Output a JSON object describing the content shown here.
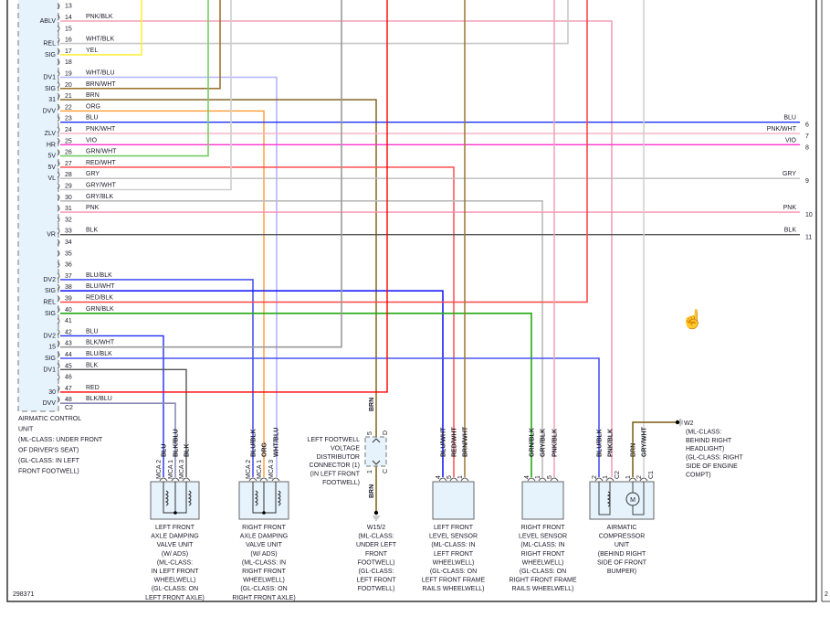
{
  "module": {
    "caption": [
      "AIRMATIC CONTROL",
      "UNIT",
      "(ML-CLASS: UNDER FRONT",
      "OF DRIVER'S SEAT)",
      "(GL-CLASS: IN LEFT",
      "FRONT FOOTWELL)"
    ],
    "connector": "C2",
    "pins": [
      {
        "pin": "13",
        "func": "",
        "wire": ""
      },
      {
        "pin": "14",
        "func": "ABLV",
        "wire": "PNK/BLK"
      },
      {
        "pin": "15",
        "func": "",
        "wire": ""
      },
      {
        "pin": "16",
        "func": "REL",
        "wire": "WHT/BLK"
      },
      {
        "pin": "17",
        "func": "SIG",
        "wire": "YEL"
      },
      {
        "pin": "18",
        "func": "",
        "wire": ""
      },
      {
        "pin": "19",
        "func": "DV1",
        "wire": "WHT/BLU"
      },
      {
        "pin": "20",
        "func": "SIG",
        "wire": "BRN/WHT"
      },
      {
        "pin": "21",
        "func": "31",
        "wire": "BRN"
      },
      {
        "pin": "22",
        "func": "DVV",
        "wire": "ORG"
      },
      {
        "pin": "23",
        "func": "",
        "wire": "BLU"
      },
      {
        "pin": "24",
        "func": "ZLV",
        "wire": "PNK/WHT"
      },
      {
        "pin": "25",
        "func": "HR",
        "wire": "VIO"
      },
      {
        "pin": "26",
        "func": "5V",
        "wire": "GRN/WHT"
      },
      {
        "pin": "27",
        "func": "5V",
        "wire": "RED/WHT"
      },
      {
        "pin": "28",
        "func": "VL",
        "wire": "GRY"
      },
      {
        "pin": "29",
        "func": "",
        "wire": "GRY/WHT"
      },
      {
        "pin": "30",
        "func": "",
        "wire": "GRY/BLK"
      },
      {
        "pin": "31",
        "func": "",
        "wire": "PNK"
      },
      {
        "pin": "32",
        "func": "",
        "wire": ""
      },
      {
        "pin": "33",
        "func": "VR",
        "wire": "BLK"
      },
      {
        "pin": "34",
        "func": "",
        "wire": ""
      },
      {
        "pin": "35",
        "func": "",
        "wire": ""
      },
      {
        "pin": "36",
        "func": "",
        "wire": ""
      },
      {
        "pin": "37",
        "func": "DV2",
        "wire": "BLU/BLK"
      },
      {
        "pin": "38",
        "func": "SIG",
        "wire": "BLU/WHT"
      },
      {
        "pin": "39",
        "func": "REL",
        "wire": "RED/BLK"
      },
      {
        "pin": "40",
        "func": "SIG",
        "wire": "GRN/BLK"
      },
      {
        "pin": "41",
        "func": "",
        "wire": ""
      },
      {
        "pin": "42",
        "func": "DV2",
        "wire": "BLU"
      },
      {
        "pin": "43",
        "func": "15",
        "wire": "BLK/WHT"
      },
      {
        "pin": "44",
        "func": "SIG",
        "wire": "BLU/BLK"
      },
      {
        "pin": "45",
        "func": "DV1",
        "wire": "BLK"
      },
      {
        "pin": "46",
        "func": "",
        "wire": ""
      },
      {
        "pin": "47",
        "func": "30",
        "wire": "RED"
      },
      {
        "pin": "48",
        "func": "DVV",
        "wire": "BLK/BLU"
      }
    ]
  },
  "wire_colors": {
    "PNK/BLK": "#f2a2b6",
    "WHT/BLK": "#c8c8c8",
    "YEL": "#ffee22",
    "WHT/BLU": "#b4b4ff",
    "BRN/WHT": "#9c7630",
    "BRN": "#7a5a10",
    "ORG": "#ff9a33",
    "BLU": "#1f2ef0",
    "PNK/WHT": "#f7b5c6",
    "VIO": "#ff33cc",
    "GRN/WHT": "#77cc66",
    "RED/WHT": "#ff5a5a",
    "GRY": "#bdbdbd",
    "GRY/WHT": "#cfcfcf",
    "GRY/BLK": "#bbbbbb",
    "PNK": "#ff8fb0",
    "BLK": "#555555",
    "BLU/BLK": "#4a55ee",
    "BLU/WHT": "#1c1cff",
    "RED/BLK": "#ff4848",
    "GRN/BLK": "#22aa11",
    "BLK/WHT": "#9a9a9a",
    "RED": "#ff0000",
    "BLK/BLU": "#8a8ab8"
  },
  "right_exits": [
    {
      "wire": "BLU",
      "num": "6"
    },
    {
      "wire": "PNK/WHT",
      "num": "7"
    },
    {
      "wire": "VIO",
      "num": "8"
    },
    {
      "wire": "GRY",
      "num": "9"
    },
    {
      "wire": "PNK",
      "num": "10"
    },
    {
      "wire": "BLK",
      "num": "11"
    }
  ],
  "components": [
    {
      "id": "left-front-axle-damping-valve",
      "pins": [
        {
          "wire": "BLU",
          "pin": "MCA 2"
        },
        {
          "wire": "BLK/BLU",
          "pin": "MCA 1"
        },
        {
          "wire": "BLK",
          "pin": "MCA 3"
        }
      ],
      "caption": [
        "LEFT FRONT",
        "AXLE DAMPING",
        "VALVE UNIT",
        "(W/ ADS)",
        "(ML-CLASS:",
        "IN LEFT FRONT",
        "WHEELWELL)",
        "(GL-CLASS: ON",
        "LEFT FRONT AXLE)"
      ]
    },
    {
      "id": "right-front-axle-damping-valve",
      "pins": [
        {
          "wire": "BLU/BLK",
          "pin": "MCA 2"
        },
        {
          "wire": "ORG",
          "pin": "MCA 1"
        },
        {
          "wire": "WHT/BLU",
          "pin": "MCA 3"
        }
      ],
      "caption": [
        "RIGHT FRONT",
        "AXLE DAMPING",
        "VALVE UNIT",
        "(W/ ADS)",
        "(ML-CLASS: IN",
        "RIGHT FRONT",
        "WHEELWELL)",
        "(GL-CLASS: ON",
        "RIGHT FRONT AXLE)"
      ]
    },
    {
      "id": "left-front-level-sensor",
      "pins": [
        {
          "wire": "BLU/WHT",
          "pin": "4"
        },
        {
          "wire": "RED/WHT",
          "pin": "5"
        },
        {
          "wire": "BRN/WHT",
          "pin": "1"
        }
      ],
      "caption": [
        "LEFT FRONT",
        "LEVEL SENSOR",
        "(ML-CLASS: IN",
        "LEFT FRONT",
        "WHEELWELL)",
        "(GL-CLASS: ON",
        "LEFT FRONT FRAME",
        "RAILS WHEELWELL)"
      ]
    },
    {
      "id": "right-front-level-sensor",
      "pins": [
        {
          "wire": "GRN/BLK",
          "pin": "4"
        },
        {
          "wire": "GRY/BLK",
          "pin": "1"
        },
        {
          "wire": "PNK/BLK",
          "pin": "5"
        }
      ],
      "caption": [
        "RIGHT FRONT",
        "LEVEL SENSOR",
        "(ML-CLASS: IN",
        "RIGHT FRONT",
        "WHEELWELL)",
        "(GL-CLASS: ON",
        "RIGHT FRONT FRAME",
        "RAILS WHEELWELL)"
      ]
    },
    {
      "id": "airmatic-compressor-unit",
      "pins": [
        {
          "wire": "BLU/BLK",
          "pin": "2"
        },
        {
          "wire": "PNK/BLK",
          "pin": "1"
        },
        {
          "wire": "BRN",
          "pin": "1"
        },
        {
          "wire": "GRY/WHT",
          "pin": "2"
        }
      ],
      "connectors": [
        "C2",
        "C1"
      ],
      "motor": "M",
      "caption": [
        "AIRMATIC",
        "COMPRESSOR",
        "UNIT",
        "(BEHIND RIGHT",
        "SIDE OF FRONT",
        "BUMPER)"
      ]
    }
  ],
  "footwell_connector": {
    "wire": "BRN",
    "pin_top": "5",
    "pin_bottom": "1",
    "conn_top": "D",
    "conn_bottom": "C",
    "caption": [
      "LEFT FOOTWELL",
      "VOLTAGE",
      "DISTRIBUTOR",
      "CONNECTOR (1)",
      "(IN LEFT FRONT",
      "FOOTWELL)"
    ]
  },
  "grounds": [
    {
      "id": "W15/2",
      "caption": [
        "W15/2",
        "(ML-CLASS:",
        "UNDER LEFT",
        "FRONT",
        "FOOTWELL)",
        "(GL-CLASS:",
        "LEFT FRONT",
        "FOOTWELL)"
      ]
    },
    {
      "id": "W2",
      "caption": [
        "W2",
        "(ML-CLASS:",
        "BEHIND RIGHT",
        "HEADLIGHT)",
        "(GL-CLASS: RIGHT",
        "SIDE OF ENGINE",
        "COMPT)"
      ]
    }
  ],
  "diagram_id": "298371",
  "next_page_marker": "2",
  "cursor_icon": "hand-pointer-icon"
}
